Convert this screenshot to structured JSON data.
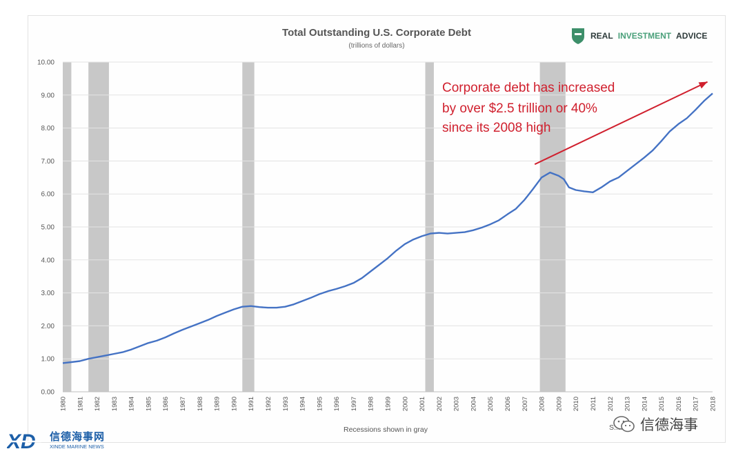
{
  "chart_data": {
    "type": "line",
    "title": "Total Outstanding U.S. Corporate Debt",
    "subtitle": "(trillions of dollars)",
    "xlabel": "Recessions shown in gray",
    "ylabel": "",
    "ylim": [
      0,
      10
    ],
    "xlim": [
      1980,
      2018
    ],
    "yticks": [
      "0.00",
      "1.00",
      "2.00",
      "3.00",
      "4.00",
      "5.00",
      "6.00",
      "7.00",
      "8.00",
      "9.00",
      "10.00"
    ],
    "xticks": [
      "1980",
      "1981",
      "1982",
      "1983",
      "1984",
      "1985",
      "1986",
      "1987",
      "1988",
      "1989",
      "1990",
      "1991",
      "1992",
      "1993",
      "1994",
      "1995",
      "1996",
      "1997",
      "1998",
      "1999",
      "2000",
      "2001",
      "2002",
      "2003",
      "2004",
      "2005",
      "2006",
      "2007",
      "2008",
      "2009",
      "2010",
      "2011",
      "2012",
      "2013",
      "2014",
      "2015",
      "2016",
      "2017",
      "2018"
    ],
    "grid": true,
    "legend": "none",
    "recessions": [
      [
        1980.0,
        1980.5
      ],
      [
        1981.5,
        1982.7
      ],
      [
        1990.5,
        1991.2
      ],
      [
        2001.2,
        2001.7
      ],
      [
        2007.9,
        2009.4
      ]
    ],
    "series": [
      {
        "color": "#4472c4",
        "points": [
          [
            1980.0,
            0.87
          ],
          [
            1980.5,
            0.9
          ],
          [
            1981.0,
            0.93
          ],
          [
            1981.5,
            1.0
          ],
          [
            1982.0,
            1.05
          ],
          [
            1982.5,
            1.1
          ],
          [
            1983.0,
            1.15
          ],
          [
            1983.5,
            1.2
          ],
          [
            1984.0,
            1.28
          ],
          [
            1984.5,
            1.38
          ],
          [
            1985.0,
            1.48
          ],
          [
            1985.5,
            1.55
          ],
          [
            1986.0,
            1.65
          ],
          [
            1986.5,
            1.77
          ],
          [
            1987.0,
            1.88
          ],
          [
            1987.5,
            1.98
          ],
          [
            1988.0,
            2.08
          ],
          [
            1988.5,
            2.18
          ],
          [
            1989.0,
            2.3
          ],
          [
            1989.5,
            2.4
          ],
          [
            1990.0,
            2.5
          ],
          [
            1990.5,
            2.58
          ],
          [
            1991.0,
            2.6
          ],
          [
            1991.5,
            2.57
          ],
          [
            1992.0,
            2.55
          ],
          [
            1992.5,
            2.55
          ],
          [
            1993.0,
            2.58
          ],
          [
            1993.5,
            2.65
          ],
          [
            1994.0,
            2.75
          ],
          [
            1994.5,
            2.85
          ],
          [
            1995.0,
            2.96
          ],
          [
            1995.5,
            3.05
          ],
          [
            1996.0,
            3.12
          ],
          [
            1996.5,
            3.2
          ],
          [
            1997.0,
            3.3
          ],
          [
            1997.5,
            3.45
          ],
          [
            1998.0,
            3.65
          ],
          [
            1998.5,
            3.85
          ],
          [
            1999.0,
            4.05
          ],
          [
            1999.5,
            4.28
          ],
          [
            2000.0,
            4.48
          ],
          [
            2000.5,
            4.62
          ],
          [
            2001.0,
            4.72
          ],
          [
            2001.5,
            4.8
          ],
          [
            2002.0,
            4.82
          ],
          [
            2002.5,
            4.8
          ],
          [
            2003.0,
            4.82
          ],
          [
            2003.5,
            4.84
          ],
          [
            2004.0,
            4.9
          ],
          [
            2004.5,
            4.98
          ],
          [
            2005.0,
            5.08
          ],
          [
            2005.5,
            5.2
          ],
          [
            2006.0,
            5.38
          ],
          [
            2006.5,
            5.55
          ],
          [
            2007.0,
            5.82
          ],
          [
            2007.5,
            6.15
          ],
          [
            2008.0,
            6.5
          ],
          [
            2008.5,
            6.65
          ],
          [
            2009.0,
            6.55
          ],
          [
            2009.3,
            6.45
          ],
          [
            2009.6,
            6.2
          ],
          [
            2010.0,
            6.12
          ],
          [
            2010.5,
            6.08
          ],
          [
            2011.0,
            6.05
          ],
          [
            2011.5,
            6.2
          ],
          [
            2012.0,
            6.38
          ],
          [
            2012.5,
            6.5
          ],
          [
            2013.0,
            6.7
          ],
          [
            2013.5,
            6.9
          ],
          [
            2014.0,
            7.1
          ],
          [
            2014.5,
            7.32
          ],
          [
            2015.0,
            7.6
          ],
          [
            2015.5,
            7.9
          ],
          [
            2016.0,
            8.12
          ],
          [
            2016.5,
            8.3
          ],
          [
            2017.0,
            8.55
          ],
          [
            2017.5,
            8.82
          ],
          [
            2018.0,
            9.05
          ]
        ]
      }
    ],
    "annotation": {
      "lines": [
        "Corporate debt has increased",
        "by over $2.5 trillion or 40%",
        "since its 2008 high"
      ],
      "color": "#d0202e",
      "arrow_from": [
        2007.6,
        6.9
      ],
      "arrow_to": [
        2017.7,
        9.4
      ]
    }
  },
  "brand": {
    "word1": "REAL",
    "word2": "INVESTMENT",
    "word3": "ADVICE",
    "dark": "#2d3a3a",
    "accent": "#4aa07a"
  },
  "source_note": "S...",
  "watermark": {
    "wechat_name": "信德海事"
  },
  "footer_logo": {
    "mark": "XD",
    "cn": "信德海事网",
    "en": "XINDE MARINE NEWS",
    "color": "#1d5fa8"
  }
}
